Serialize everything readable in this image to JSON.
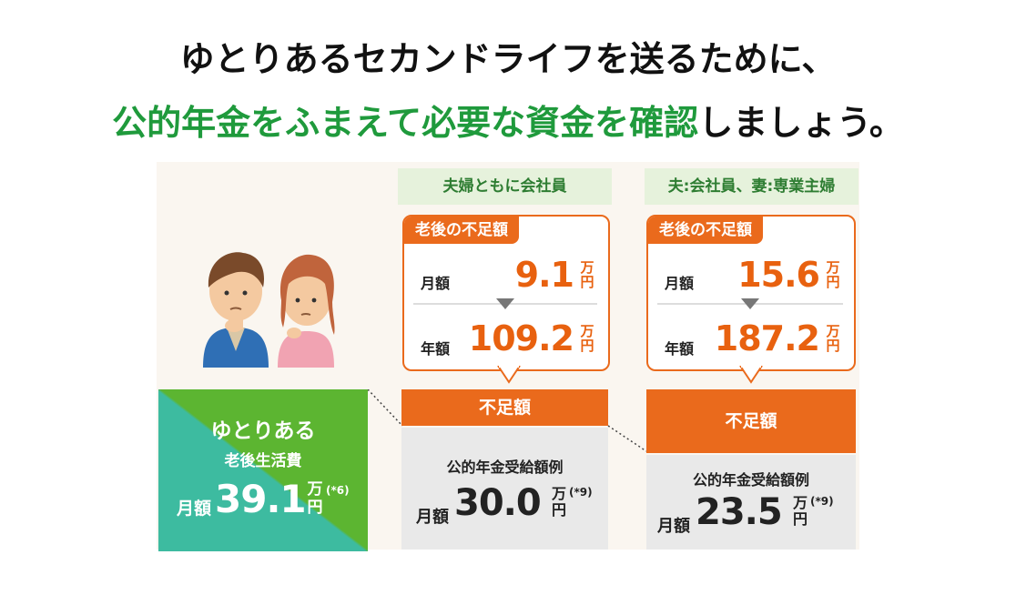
{
  "headline": {
    "line1": "ゆとりあるセカンドライフを送るために、",
    "line2_green": "公的年金をふまえて必要な資金を確認",
    "line2_black": "しましょう。"
  },
  "comfortable": {
    "title": "ゆとりある",
    "subtitle": "老後生活費",
    "prefix": "月額",
    "value": "39.1",
    "unit_top": "万",
    "unit_bottom": "円",
    "note": "(*6)"
  },
  "scenarios": [
    {
      "label": "夫婦ともに会社員",
      "card_title": "老後の不足額",
      "monthly_label": "月額",
      "monthly_value": "9.1",
      "yearly_label": "年額",
      "yearly_value": "109.2",
      "unit_top": "万",
      "unit_bottom": "円",
      "shortfall_label": "不足額",
      "pension_title": "公的年金受給額例",
      "pension_prefix": "月額",
      "pension_value": "30.0",
      "pension_note": "(*9)"
    },
    {
      "label": "夫:会社員、妻:専業主婦",
      "card_title": "老後の不足額",
      "monthly_label": "月額",
      "monthly_value": "15.6",
      "yearly_label": "年額",
      "yearly_value": "187.2",
      "unit_top": "万",
      "unit_bottom": "円",
      "shortfall_label": "不足額",
      "pension_title": "公的年金受給額例",
      "pension_prefix": "月額",
      "pension_value": "23.5",
      "pension_note": "(*9)"
    }
  ],
  "colors": {
    "green_top": "#5cb531",
    "teal": "#3dbba0",
    "orange": "#ea6a1c",
    "headline_green": "#1f9a3c",
    "gray": "#e9e9e9"
  },
  "illustration": {
    "icon": "worried-couple-icon"
  },
  "chart_data": {
    "type": "bar",
    "unit": "万円",
    "categories": [
      "ゆとりある老後生活費",
      "夫婦ともに会社員",
      "夫:会社員、妻:専業主婦"
    ],
    "series": [
      {
        "name": "公的年金受給額例",
        "values": [
          0,
          30.0,
          23.5
        ]
      },
      {
        "name": "不足額",
        "values": [
          0,
          9.1,
          15.6
        ]
      },
      {
        "name": "ゆとりある老後生活費",
        "values": [
          39.1,
          0,
          0
        ]
      }
    ],
    "yearly_shortfall": [
      null,
      109.2,
      187.2
    ]
  }
}
